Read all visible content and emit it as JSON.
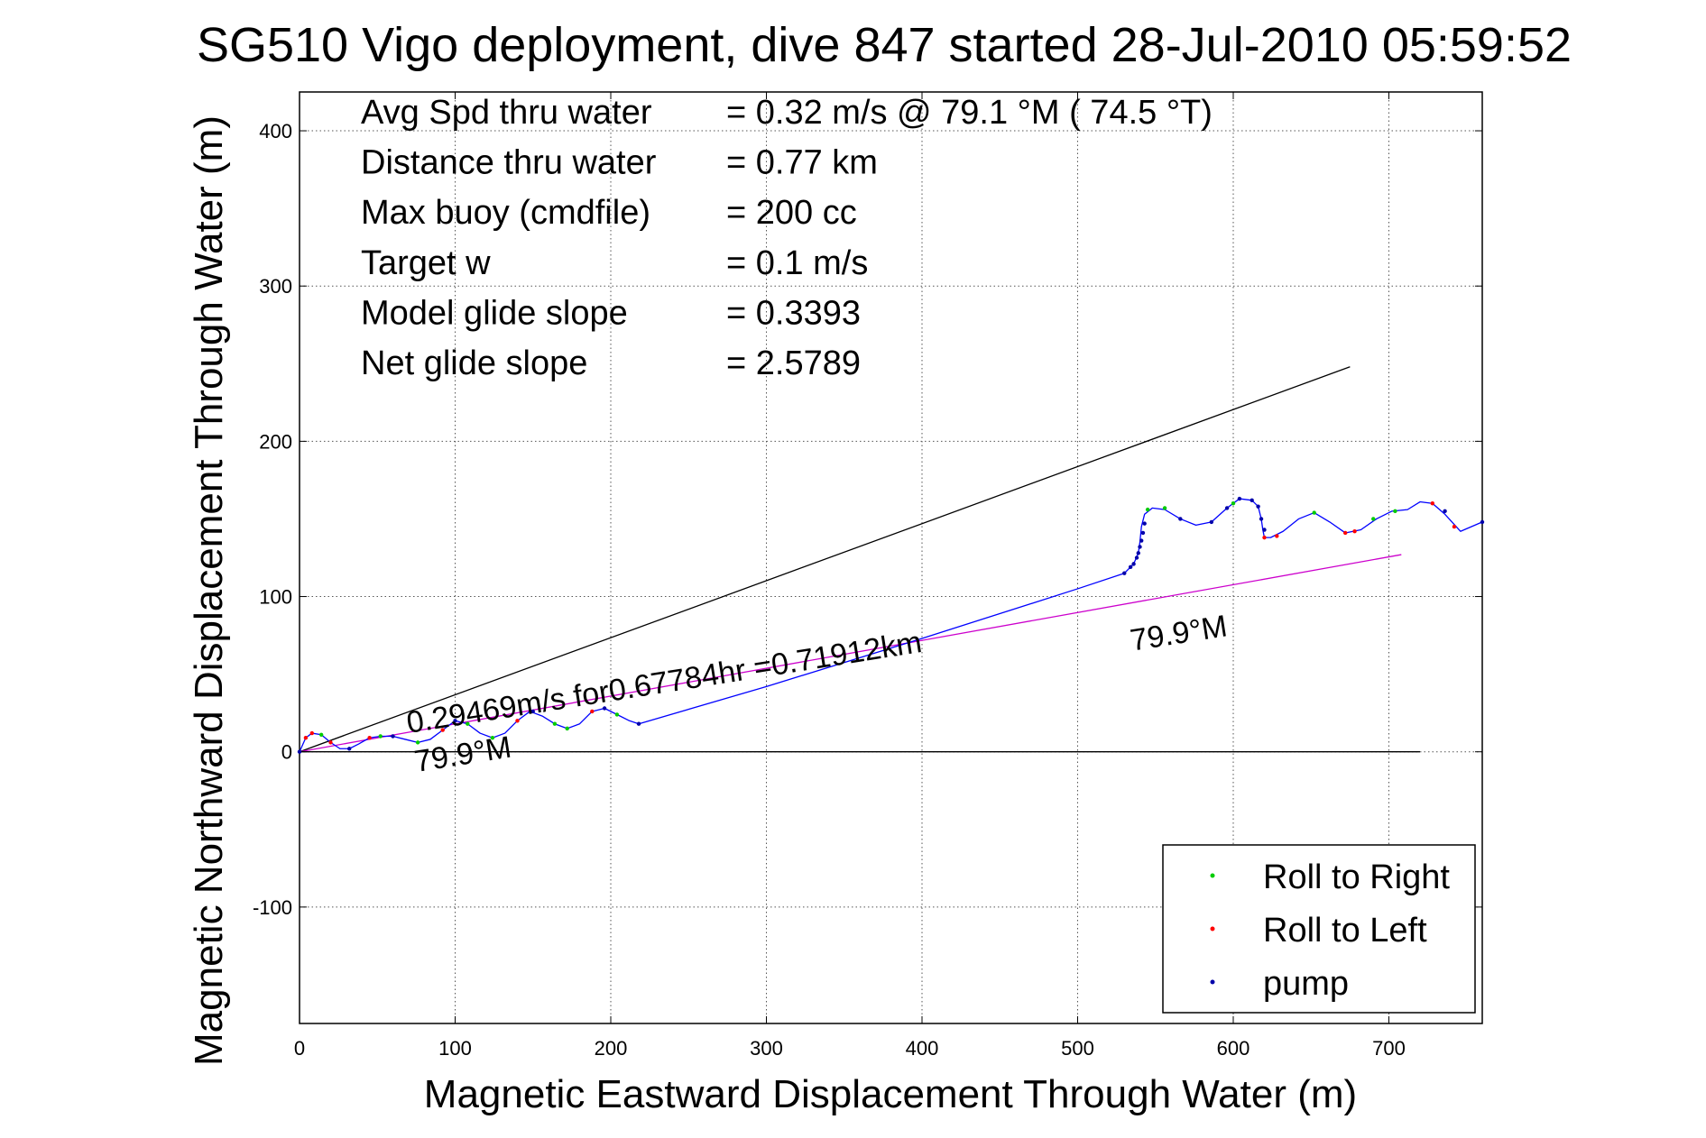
{
  "chart_data": {
    "type": "line",
    "title": "SG510 Vigo deployment, dive 847 started 28-Jul-2010 05:59:52",
    "xlabel": "Magnetic Eastward Displacement Through Water (m)",
    "ylabel": "Magnetic Northward Displacement Through Water (m)",
    "xlim": [
      0,
      760
    ],
    "ylim": [
      -175,
      425
    ],
    "xticks": [
      "0",
      "100",
      "200",
      "300",
      "400",
      "500",
      "600",
      "700"
    ],
    "xtick_values": [
      0,
      100,
      200,
      300,
      400,
      500,
      600,
      700
    ],
    "yticks": [
      "-100",
      "0",
      "100",
      "200",
      "300",
      "400"
    ],
    "ytick_values": [
      -100,
      0,
      100,
      200,
      300,
      400
    ],
    "grid": true,
    "info_lines": [
      {
        "label": "Avg Spd thru water",
        "value": "=  0.32 m/s @  79.1 °M ( 74.5 °T)"
      },
      {
        "label": "Distance thru water",
        "value": "=  0.77 km"
      },
      {
        "label": "Max buoy (cmdfile)",
        "value": "= 200 cc"
      },
      {
        "label": "Target w",
        "value": "= 0.1 m/s"
      },
      {
        "label": "Model glide slope",
        "value": "= 0.3393"
      },
      {
        "label": "Net glide slope",
        "value": "= 2.5789"
      }
    ],
    "annotations": [
      {
        "text": "0.29469m/s for0.67784hr =0.71912km",
        "x": 70,
        "y": 12,
        "rotation_deg": -9
      },
      {
        "text": "79.9°M",
        "x": 75,
        "y": -13,
        "rotation_deg": -9
      },
      {
        "text": "79.9°M",
        "x": 535,
        "y": 65,
        "rotation_deg": -9
      }
    ],
    "reference_lines": [
      {
        "color": "#000000",
        "x": [
          0,
          675
        ],
        "y": [
          0,
          248
        ]
      },
      {
        "color": "#cc00cc",
        "x": [
          0,
          708
        ],
        "y": [
          0,
          127
        ]
      },
      {
        "color": "#000000",
        "x": [
          0,
          720
        ],
        "y": [
          0,
          0
        ]
      }
    ],
    "track": {
      "color": "#0000ff",
      "x": [
        0,
        4,
        8,
        14,
        20,
        26,
        32,
        38,
        45,
        52,
        60,
        68,
        76,
        84,
        92,
        100,
        108,
        116,
        124,
        132,
        140,
        148,
        156,
        164,
        172,
        180,
        188,
        196,
        204,
        212,
        218,
        300,
        400,
        500,
        530,
        536,
        539,
        540,
        541,
        543,
        548,
        556,
        566,
        576,
        586,
        596,
        604,
        612,
        616,
        618,
        619,
        620,
        624,
        632,
        642,
        652,
        662,
        672,
        682,
        692,
        702,
        712,
        720,
        728,
        736,
        746,
        760
      ],
      "y": [
        0,
        9,
        12,
        11,
        6,
        2,
        2,
        5,
        9,
        10,
        10,
        8,
        6,
        8,
        14,
        20,
        18,
        12,
        9,
        12,
        20,
        26,
        23,
        18,
        15,
        18,
        26,
        28,
        24,
        20,
        18,
        42,
        73,
        105,
        115,
        121,
        128,
        135,
        145,
        153,
        157,
        156,
        150,
        146,
        148,
        157,
        163,
        162,
        158,
        150,
        143,
        138,
        138,
        142,
        150,
        154,
        148,
        141,
        143,
        150,
        155,
        156,
        161,
        160,
        153,
        142,
        148
      ]
    },
    "markers": {
      "Roll to Right": {
        "color": "#00cc00",
        "x": [
          14,
          52,
          76,
          108,
          124,
          164,
          172,
          204,
          545,
          556,
          600,
          652,
          690,
          704
        ],
        "y": [
          11,
          10,
          6,
          18,
          9,
          18,
          15,
          24,
          156,
          157,
          160,
          154,
          150,
          155
        ]
      },
      "Roll to Left": {
        "color": "#ff0000",
        "x": [
          4,
          8,
          20,
          45,
          92,
          140,
          188,
          620,
          628,
          672,
          678,
          728,
          742
        ],
        "y": [
          9,
          12,
          6,
          9,
          14,
          20,
          26,
          138,
          139,
          141,
          142,
          160,
          145
        ]
      },
      "pump": {
        "color": "#0000aa",
        "x": [
          0,
          32,
          60,
          100,
          150,
          196,
          218,
          530,
          534,
          536,
          538,
          539,
          540,
          541,
          542,
          543,
          566,
          586,
          596,
          604,
          612,
          616,
          618,
          620,
          736,
          760
        ],
        "y": [
          0,
          2,
          10,
          20,
          26,
          28,
          18,
          115,
          119,
          121,
          125,
          128,
          132,
          136,
          141,
          147,
          150,
          148,
          157,
          163,
          162,
          158,
          150,
          143,
          155,
          148
        ]
      }
    },
    "legend": {
      "placement": "bottom-right",
      "entries": [
        {
          "label": "Roll to Right",
          "color": "#00cc00"
        },
        {
          "label": "Roll to Left",
          "color": "#ff0000"
        },
        {
          "label": "pump",
          "color": "#0000aa"
        }
      ]
    }
  }
}
